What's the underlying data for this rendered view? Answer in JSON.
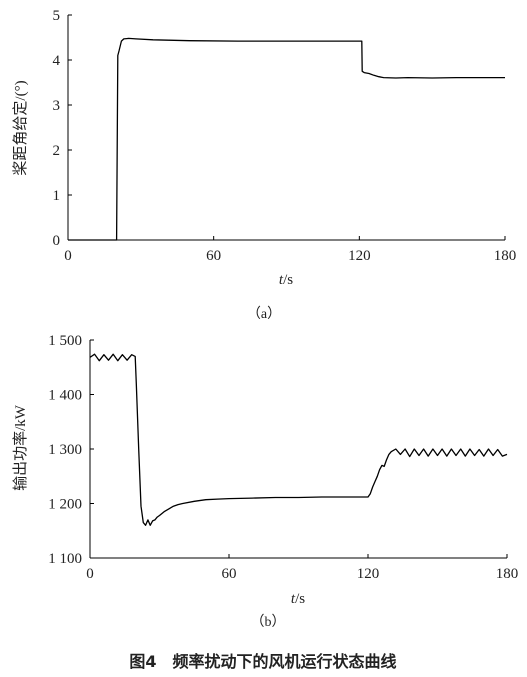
{
  "figure": {
    "caption": "图4　频率扰动下的风机运行状态曲线"
  },
  "chart_data": [
    {
      "type": "line",
      "sublabel": "（a）",
      "ylabel": "桨距角给定/(°)",
      "xlabel": "t/s",
      "xlabel_italic": "t",
      "xlabel_unit": "/s",
      "xlim": [
        0,
        180
      ],
      "ylim": [
        0,
        5
      ],
      "xticks": [
        0,
        60,
        120,
        180
      ],
      "xtick_labels": [
        "0",
        "60",
        "120",
        "180"
      ],
      "yticks": [
        0,
        1,
        2,
        3,
        4,
        5
      ],
      "ytick_labels": [
        "0",
        "1",
        "2",
        "3",
        "4",
        "5"
      ],
      "x": [
        0,
        20,
        20.5,
        21,
        22,
        23,
        25,
        28,
        35,
        50,
        70,
        90,
        110,
        121,
        121.2,
        122,
        124,
        126,
        128,
        130,
        135,
        140,
        150,
        160,
        170,
        180
      ],
      "y": [
        0,
        0,
        4.1,
        4.2,
        4.42,
        4.47,
        4.48,
        4.47,
        4.45,
        4.43,
        4.42,
        4.42,
        4.42,
        4.42,
        3.75,
        3.72,
        3.7,
        3.66,
        3.63,
        3.61,
        3.6,
        3.61,
        3.6,
        3.61,
        3.61,
        3.61
      ],
      "series": [
        {
          "values": "y"
        }
      ]
    },
    {
      "type": "line",
      "sublabel": "（b）",
      "ylabel": "输出功率/kW",
      "xlabel": "t/s",
      "xlabel_italic": "t",
      "xlabel_unit": "/s",
      "xlim": [
        0,
        180
      ],
      "ylim": [
        1100,
        1500
      ],
      "xticks": [
        0,
        60,
        120,
        180
      ],
      "xtick_labels": [
        "0",
        "60",
        "120",
        "180"
      ],
      "yticks": [
        1100,
        1200,
        1300,
        1400,
        1500
      ],
      "ytick_labels": [
        "1 100",
        "1 200",
        "1 300",
        "1 400",
        "1 500"
      ],
      "x": [
        0,
        2,
        4,
        6,
        8,
        10,
        12,
        14,
        16,
        18,
        19.5,
        20,
        21,
        22,
        23,
        24,
        25,
        26,
        27,
        28,
        29,
        30,
        32,
        34,
        36,
        38,
        40,
        45,
        50,
        55,
        60,
        70,
        80,
        90,
        100,
        110,
        118,
        120,
        121,
        122,
        123,
        124,
        125,
        126,
        127,
        128,
        129,
        130,
        132,
        134,
        136,
        138,
        140,
        142,
        144,
        146,
        148,
        150,
        152,
        154,
        156,
        158,
        160,
        162,
        164,
        166,
        168,
        170,
        172,
        174,
        176,
        178,
        180
      ],
      "y": [
        1468,
        1474,
        1462,
        1473,
        1463,
        1474,
        1462,
        1473,
        1463,
        1473,
        1470,
        1420,
        1300,
        1195,
        1165,
        1160,
        1170,
        1160,
        1168,
        1170,
        1175,
        1178,
        1185,
        1190,
        1195,
        1198,
        1200,
        1204,
        1207,
        1208,
        1209,
        1210,
        1211,
        1211,
        1212,
        1212,
        1212,
        1212,
        1218,
        1230,
        1240,
        1250,
        1262,
        1270,
        1268,
        1280,
        1290,
        1295,
        1300,
        1290,
        1300,
        1286,
        1300,
        1288,
        1300,
        1287,
        1300,
        1288,
        1300,
        1287,
        1300,
        1288,
        1300,
        1287,
        1300,
        1288,
        1299,
        1287,
        1300,
        1288,
        1299,
        1287,
        1290
      ],
      "series": [
        {
          "values": "y"
        }
      ]
    }
  ]
}
